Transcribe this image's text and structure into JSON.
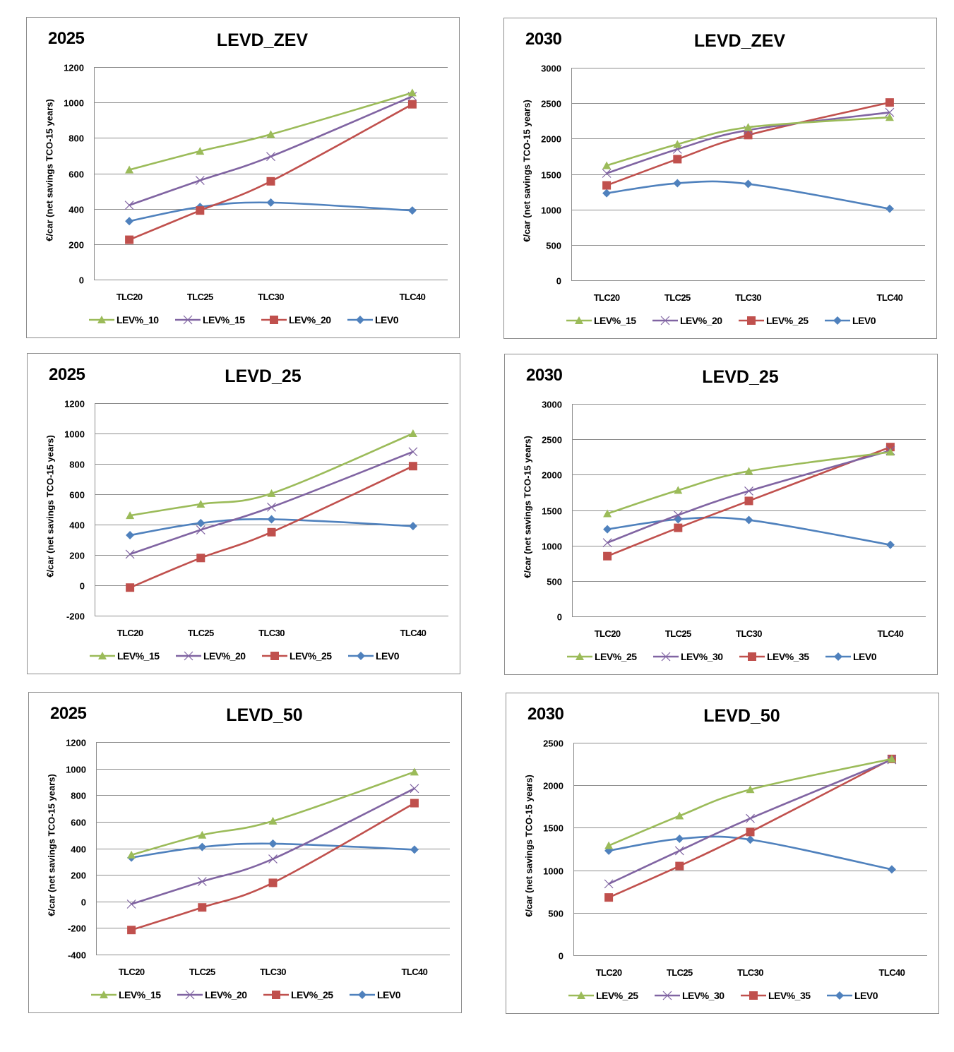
{
  "chart_data": [
    {
      "type": "line",
      "year": "2025",
      "title": "LEVD_ZEV",
      "xlabel": "",
      "ylabel": "€/car (net savings TCO-15 years)",
      "categories": [
        "TLC20",
        "TLC25",
        "TLC30",
        "TLC40"
      ],
      "x": [
        20,
        25,
        30,
        40
      ],
      "ylim": [
        0,
        1200
      ],
      "ystep": 200,
      "grid": true,
      "legend": "bottom",
      "series": [
        {
          "name": "LEV%_10",
          "marker": "triangle",
          "color": "#9BBB59",
          "values": [
            620,
            725,
            820,
            1055
          ]
        },
        {
          "name": "LEV%_15",
          "marker": "x",
          "color": "#8064A2",
          "values": [
            420,
            560,
            695,
            1035
          ]
        },
        {
          "name": "LEV%_20",
          "marker": "square",
          "color": "#C0504D",
          "values": [
            225,
            390,
            555,
            990
          ]
        },
        {
          "name": "LEV0",
          "marker": "diamond",
          "color": "#4F81BD",
          "values": [
            330,
            410,
            435,
            390
          ]
        }
      ]
    },
    {
      "type": "line",
      "year": "2030",
      "title": "LEVD_ZEV",
      "xlabel": "",
      "ylabel": "€/car (net savings TCO-15 years)",
      "categories": [
        "TLC20",
        "TLC25",
        "TLC30",
        "TLC40"
      ],
      "x": [
        20,
        25,
        30,
        40
      ],
      "ylim": [
        0,
        3000
      ],
      "ystep": 500,
      "grid": true,
      "legend": "bottom",
      "series": [
        {
          "name": "LEV%_15",
          "marker": "triangle",
          "color": "#9BBB59",
          "values": [
            1620,
            1920,
            2160,
            2300
          ]
        },
        {
          "name": "LEV%_20",
          "marker": "x",
          "color": "#8064A2",
          "values": [
            1510,
            1850,
            2120,
            2370
          ]
        },
        {
          "name": "LEV%_25",
          "marker": "square",
          "color": "#C0504D",
          "values": [
            1340,
            1710,
            2050,
            2510
          ]
        },
        {
          "name": "LEV0",
          "marker": "diamond",
          "color": "#4F81BD",
          "values": [
            1230,
            1370,
            1360,
            1010
          ]
        }
      ]
    },
    {
      "type": "line",
      "year": "2025",
      "title": "LEVD_25",
      "xlabel": "",
      "ylabel": "€/car (net savings TCO-15 years)",
      "categories": [
        "TLC20",
        "TLC25",
        "TLC30",
        "TLC40"
      ],
      "x": [
        20,
        25,
        30,
        40
      ],
      "ylim": [
        -200,
        1200
      ],
      "ystep": 200,
      "grid": true,
      "legend": "bottom",
      "series": [
        {
          "name": "LEV%_15",
          "marker": "triangle",
          "color": "#9BBB59",
          "values": [
            460,
            535,
            605,
            1000
          ]
        },
        {
          "name": "LEV%_20",
          "marker": "x",
          "color": "#8064A2",
          "values": [
            205,
            365,
            515,
            880
          ]
        },
        {
          "name": "LEV%_25",
          "marker": "square",
          "color": "#C0504D",
          "values": [
            -15,
            180,
            350,
            785
          ]
        },
        {
          "name": "LEV0",
          "marker": "diamond",
          "color": "#4F81BD",
          "values": [
            330,
            410,
            435,
            390
          ]
        }
      ]
    },
    {
      "type": "line",
      "year": "2030",
      "title": "LEVD_25",
      "xlabel": "",
      "ylabel": "€/car (net savings TCO-15 years)",
      "categories": [
        "TLC20",
        "TLC25",
        "TLC30",
        "TLC40"
      ],
      "x": [
        20,
        25,
        30,
        40
      ],
      "ylim": [
        0,
        3000
      ],
      "ystep": 500,
      "grid": true,
      "legend": "bottom",
      "series": [
        {
          "name": "LEV%_25",
          "marker": "triangle",
          "color": "#9BBB59",
          "values": [
            1450,
            1780,
            2050,
            2320
          ]
        },
        {
          "name": "LEV%_30",
          "marker": "x",
          "color": "#8064A2",
          "values": [
            1040,
            1430,
            1770,
            2340
          ]
        },
        {
          "name": "LEV%_35",
          "marker": "square",
          "color": "#C0504D",
          "values": [
            850,
            1250,
            1630,
            2390
          ]
        },
        {
          "name": "LEV0",
          "marker": "diamond",
          "color": "#4F81BD",
          "values": [
            1230,
            1370,
            1360,
            1010
          ]
        }
      ]
    },
    {
      "type": "line",
      "year": "2025",
      "title": "LEVD_50",
      "xlabel": "",
      "ylabel": "€/car (net savings TCO-15 years)",
      "categories": [
        "TLC20",
        "TLC25",
        "TLC30",
        "TLC40"
      ],
      "x": [
        20,
        25,
        30,
        40
      ],
      "ylim": [
        -400,
        1200
      ],
      "ystep": 200,
      "grid": true,
      "legend": "bottom",
      "series": [
        {
          "name": "LEV%_15",
          "marker": "triangle",
          "color": "#9BBB59",
          "values": [
            350,
            500,
            605,
            975
          ]
        },
        {
          "name": "LEV%_20",
          "marker": "x",
          "color": "#8064A2",
          "values": [
            -20,
            150,
            320,
            850
          ]
        },
        {
          "name": "LEV%_25",
          "marker": "square",
          "color": "#C0504D",
          "values": [
            -215,
            -45,
            140,
            740
          ]
        },
        {
          "name": "LEV0",
          "marker": "diamond",
          "color": "#4F81BD",
          "values": [
            330,
            410,
            435,
            390
          ]
        }
      ]
    },
    {
      "type": "line",
      "year": "2030",
      "title": "LEVD_50",
      "xlabel": "",
      "ylabel": "€/car (net savings TCO-15 years)",
      "categories": [
        "TLC20",
        "TLC25",
        "TLC30",
        "TLC40"
      ],
      "x": [
        20,
        25,
        30,
        40
      ],
      "ylim": [
        0,
        2500
      ],
      "ystep": 500,
      "grid": true,
      "legend": "bottom",
      "series": [
        {
          "name": "LEV%_25",
          "marker": "triangle",
          "color": "#9BBB59",
          "values": [
            1290,
            1640,
            1950,
            2310
          ]
        },
        {
          "name": "LEV%_30",
          "marker": "x",
          "color": "#8064A2",
          "values": [
            840,
            1230,
            1610,
            2300
          ]
        },
        {
          "name": "LEV%_35",
          "marker": "square",
          "color": "#C0504D",
          "values": [
            680,
            1050,
            1450,
            2310
          ]
        },
        {
          "name": "LEV0",
          "marker": "diamond",
          "color": "#4F81BD",
          "values": [
            1230,
            1370,
            1360,
            1010
          ]
        }
      ]
    }
  ]
}
